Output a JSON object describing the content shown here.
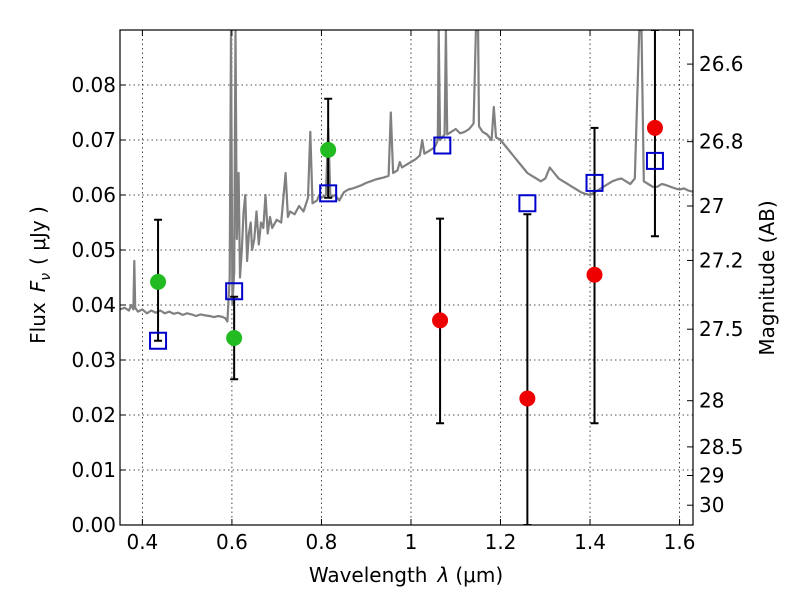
{
  "chart_data": {
    "type": "scatter",
    "title": "",
    "xlabel": "Wavelength",
    "xlabel_symbol": "λ",
    "xlabel_unit": "(μm)",
    "ylabel": "Flux",
    "ylabel_symbol": "F",
    "ylabel_subscript": "ν",
    "ylabel_unit": "( μJy )",
    "y2label": "Magnitude (AB)",
    "xlim": [
      0.35,
      1.63
    ],
    "ylim": [
      0.0,
      0.09
    ],
    "grid": true,
    "xticks": [
      0.4,
      0.6,
      0.8,
      1.0,
      1.2,
      1.4,
      1.6
    ],
    "xtick_labels": [
      "0.4",
      "0.6",
      "0.8",
      "1",
      "1.2",
      "1.4",
      "1.6"
    ],
    "yticks": [
      0.0,
      0.01,
      0.02,
      0.03,
      0.04,
      0.05,
      0.06,
      0.07,
      0.08
    ],
    "ytick_labels": [
      "0.00",
      "0.01",
      "0.02",
      "0.03",
      "0.04",
      "0.05",
      "0.06",
      "0.07",
      "0.08"
    ],
    "y2ticks": [
      {
        "label": "26.6",
        "flux": 0.0838
      },
      {
        "label": "26.8",
        "flux": 0.0697
      },
      {
        "label": "27",
        "flux": 0.058
      },
      {
        "label": "27.2",
        "flux": 0.0481
      },
      {
        "label": "27.5",
        "flux": 0.0356
      },
      {
        "label": "28",
        "flux": 0.0226
      },
      {
        "label": "28.5",
        "flux": 0.0142
      },
      {
        "label": "29",
        "flux": 0.009
      },
      {
        "label": "30",
        "flux": 0.0036
      }
    ],
    "series": [
      {
        "kind": "spectrum",
        "color": "#808080",
        "points": [
          [
            0.35,
            0.0392
          ],
          [
            0.36,
            0.0395
          ],
          [
            0.37,
            0.039
          ],
          [
            0.375,
            0.04
          ],
          [
            0.38,
            0.0392
          ],
          [
            0.382,
            0.048
          ],
          [
            0.384,
            0.0395
          ],
          [
            0.39,
            0.0388
          ],
          [
            0.4,
            0.0392
          ],
          [
            0.41,
            0.0385
          ],
          [
            0.42,
            0.039
          ],
          [
            0.43,
            0.0386
          ],
          [
            0.44,
            0.039
          ],
          [
            0.45,
            0.0385
          ],
          [
            0.46,
            0.0388
          ],
          [
            0.47,
            0.0384
          ],
          [
            0.48,
            0.0386
          ],
          [
            0.49,
            0.0382
          ],
          [
            0.5,
            0.0385
          ],
          [
            0.51,
            0.0383
          ],
          [
            0.52,
            0.038
          ],
          [
            0.53,
            0.0383
          ],
          [
            0.54,
            0.0381
          ],
          [
            0.55,
            0.038
          ],
          [
            0.56,
            0.0378
          ],
          [
            0.57,
            0.038
          ],
          [
            0.58,
            0.0378
          ],
          [
            0.585,
            0.0376
          ],
          [
            0.59,
            0.037
          ],
          [
            0.595,
            0.045
          ],
          [
            0.598,
            0.09
          ],
          [
            0.601,
            0.04
          ],
          [
            0.605,
            0.046
          ],
          [
            0.608,
            0.09
          ],
          [
            0.611,
            0.052
          ],
          [
            0.615,
            0.064
          ],
          [
            0.618,
            0.045
          ],
          [
            0.622,
            0.05
          ],
          [
            0.626,
            0.057
          ],
          [
            0.63,
            0.06
          ],
          [
            0.634,
            0.048
          ],
          [
            0.638,
            0.053
          ],
          [
            0.642,
            0.055
          ],
          [
            0.645,
            0.05
          ],
          [
            0.65,
            0.052
          ],
          [
            0.655,
            0.057
          ],
          [
            0.66,
            0.051
          ],
          [
            0.665,
            0.055
          ],
          [
            0.67,
            0.054
          ],
          [
            0.675,
            0.06
          ],
          [
            0.68,
            0.053
          ],
          [
            0.685,
            0.056
          ],
          [
            0.69,
            0.054
          ],
          [
            0.7,
            0.0555
          ],
          [
            0.71,
            0.055
          ],
          [
            0.72,
            0.064
          ],
          [
            0.725,
            0.056
          ],
          [
            0.73,
            0.057
          ],
          [
            0.74,
            0.0565
          ],
          [
            0.75,
            0.058
          ],
          [
            0.76,
            0.057
          ],
          [
            0.77,
            0.0595
          ],
          [
            0.775,
            0.0715
          ],
          [
            0.78,
            0.0585
          ],
          [
            0.79,
            0.059
          ],
          [
            0.795,
            0.06
          ],
          [
            0.8,
            0.0595
          ],
          [
            0.81,
            0.06
          ],
          [
            0.815,
            0.072
          ],
          [
            0.82,
            0.0595
          ],
          [
            0.83,
            0.06
          ],
          [
            0.84,
            0.059
          ],
          [
            0.85,
            0.0605
          ],
          [
            0.86,
            0.061
          ],
          [
            0.87,
            0.0612
          ],
          [
            0.88,
            0.0615
          ],
          [
            0.89,
            0.0618
          ],
          [
            0.9,
            0.0622
          ],
          [
            0.91,
            0.0625
          ],
          [
            0.92,
            0.0628
          ],
          [
            0.93,
            0.063
          ],
          [
            0.94,
            0.0632
          ],
          [
            0.95,
            0.0635
          ],
          [
            0.955,
            0.075
          ],
          [
            0.96,
            0.064
          ],
          [
            0.97,
            0.0645
          ],
          [
            0.975,
            0.066
          ],
          [
            0.98,
            0.065
          ],
          [
            0.99,
            0.0655
          ],
          [
            1.0,
            0.066
          ],
          [
            1.01,
            0.0665
          ],
          [
            1.02,
            0.0672
          ],
          [
            1.025,
            0.07
          ],
          [
            1.03,
            0.0675
          ],
          [
            1.04,
            0.068
          ],
          [
            1.05,
            0.0685
          ],
          [
            1.055,
            0.069
          ],
          [
            1.06,
            0.07
          ],
          [
            1.062,
            0.09
          ],
          [
            1.065,
            0.07
          ],
          [
            1.07,
            0.0705
          ],
          [
            1.075,
            0.071
          ],
          [
            1.078,
            0.09
          ],
          [
            1.081,
            0.071
          ],
          [
            1.09,
            0.0715
          ],
          [
            1.1,
            0.072
          ],
          [
            1.11,
            0.0712
          ],
          [
            1.12,
            0.0715
          ],
          [
            1.13,
            0.072
          ],
          [
            1.14,
            0.073
          ],
          [
            1.145,
            0.09
          ],
          [
            1.15,
            0.09
          ],
          [
            1.152,
            0.0725
          ],
          [
            1.16,
            0.0715
          ],
          [
            1.17,
            0.071
          ],
          [
            1.18,
            0.07
          ],
          [
            1.185,
            0.076
          ],
          [
            1.19,
            0.0705
          ],
          [
            1.2,
            0.07
          ],
          [
            1.21,
            0.069
          ],
          [
            1.22,
            0.068
          ],
          [
            1.23,
            0.067
          ],
          [
            1.24,
            0.066
          ],
          [
            1.25,
            0.065
          ],
          [
            1.26,
            0.064
          ],
          [
            1.27,
            0.0635
          ],
          [
            1.28,
            0.063
          ],
          [
            1.29,
            0.0625
          ],
          [
            1.3,
            0.063
          ],
          [
            1.31,
            0.065
          ],
          [
            1.32,
            0.064
          ],
          [
            1.33,
            0.063
          ],
          [
            1.34,
            0.0625
          ],
          [
            1.35,
            0.062
          ],
          [
            1.36,
            0.0615
          ],
          [
            1.37,
            0.061
          ],
          [
            1.38,
            0.0605
          ],
          [
            1.39,
            0.0602
          ],
          [
            1.4,
            0.06
          ],
          [
            1.41,
            0.0605
          ],
          [
            1.42,
            0.061
          ],
          [
            1.43,
            0.0615
          ],
          [
            1.44,
            0.062
          ],
          [
            1.45,
            0.0625
          ],
          [
            1.46,
            0.0628
          ],
          [
            1.47,
            0.063
          ],
          [
            1.48,
            0.0625
          ],
          [
            1.49,
            0.062
          ],
          [
            1.5,
            0.063
          ],
          [
            1.51,
            0.09
          ],
          [
            1.515,
            0.09
          ],
          [
            1.52,
            0.0625
          ],
          [
            1.53,
            0.062
          ],
          [
            1.54,
            0.0615
          ],
          [
            1.55,
            0.0615
          ],
          [
            1.56,
            0.062
          ],
          [
            1.57,
            0.0618
          ],
          [
            1.58,
            0.0615
          ],
          [
            1.59,
            0.0612
          ],
          [
            1.6,
            0.061
          ],
          [
            1.61,
            0.0612
          ],
          [
            1.62,
            0.0608
          ],
          [
            1.63,
            0.0606
          ]
        ]
      },
      {
        "kind": "model-box",
        "color": "#0000cc",
        "x": [
          0.435,
          0.605,
          0.815,
          1.07,
          1.26,
          1.41,
          1.545
        ],
        "y": [
          0.0335,
          0.0425,
          0.0603,
          0.069,
          0.0585,
          0.0622,
          0.0662
        ]
      },
      {
        "kind": "detection",
        "color": "#22bb22",
        "x": [
          0.435,
          0.605,
          0.815
        ],
        "y": [
          0.0442,
          0.034,
          0.0682
        ],
        "yerr_low": [
          0.0335,
          0.0265,
          0.0595
        ],
        "yerr_high": [
          0.0555,
          0.0415,
          0.0775
        ]
      },
      {
        "kind": "upper-limit",
        "color": "#ee0000",
        "x": [
          1.065,
          1.26,
          1.41,
          1.545
        ],
        "y": [
          0.0372,
          0.023,
          0.0455,
          0.0722
        ],
        "yerr_low": [
          0.0185,
          0.0,
          0.0185,
          0.0525
        ],
        "yerr_high": [
          0.0557,
          0.0565,
          0.0722,
          0.09
        ]
      }
    ]
  }
}
